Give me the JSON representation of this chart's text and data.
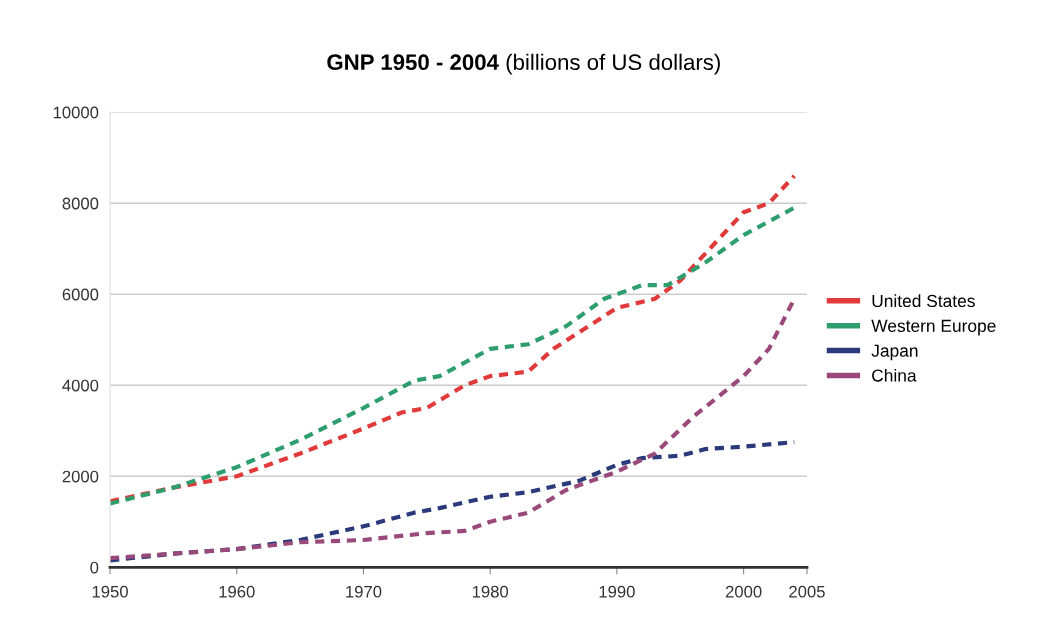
{
  "chart_data": {
    "type": "line",
    "title": "GNP 1950 - 2004",
    "subtitle": "(billions of US dollars)",
    "xlim": [
      1950,
      2005
    ],
    "xticks": [
      1950,
      1960,
      1970,
      1980,
      1990,
      2000,
      2005
    ],
    "ylim": [
      0,
      10000
    ],
    "yticks": [
      0,
      2000,
      4000,
      6000,
      8000,
      10000
    ],
    "grid": "y",
    "legend": "right",
    "line_style": "dashed",
    "marker": "none",
    "series": [
      {
        "name": "United States",
        "color": "#e03a3a",
        "x": [
          1950,
          1955,
          1960,
          1965,
          1970,
          1973,
          1975,
          1978,
          1980,
          1983,
          1985,
          1990,
          1993,
          1995,
          1998,
          2000,
          2002,
          2004
        ],
        "values": [
          1450,
          1750,
          2000,
          2500,
          3050,
          3400,
          3500,
          4000,
          4200,
          4300,
          4800,
          5700,
          5900,
          6300,
          7200,
          7800,
          8000,
          8600
        ]
      },
      {
        "name": "Western Europe",
        "color": "#2e9e6e",
        "x": [
          1950,
          1955,
          1960,
          1965,
          1970,
          1974,
          1976,
          1980,
          1983,
          1986,
          1989,
          1992,
          1994,
          1997,
          2000,
          2002,
          2004
        ],
        "values": [
          1400,
          1750,
          2200,
          2800,
          3500,
          4100,
          4200,
          4800,
          4900,
          5300,
          5900,
          6200,
          6200,
          6700,
          7300,
          7600,
          7900
        ]
      },
      {
        "name": "Japan",
        "color": "#2b3a7a",
        "x": [
          1950,
          1955,
          1960,
          1965,
          1970,
          1974,
          1976,
          1980,
          1983,
          1987,
          1990,
          1992,
          1995,
          1997,
          2000,
          2004
        ],
        "values": [
          150,
          300,
          400,
          600,
          900,
          1200,
          1300,
          1550,
          1650,
          1900,
          2250,
          2400,
          2450,
          2600,
          2650,
          2750
        ]
      },
      {
        "name": "China",
        "color": "#9a4a7a",
        "x": [
          1950,
          1955,
          1960,
          1965,
          1970,
          1975,
          1978,
          1980,
          1983,
          1986,
          1990,
          1993,
          1996,
          2000,
          2002,
          2004
        ],
        "values": [
          200,
          300,
          400,
          550,
          600,
          750,
          800,
          1000,
          1200,
          1700,
          2100,
          2500,
          3300,
          4200,
          4800,
          5900
        ]
      }
    ]
  }
}
